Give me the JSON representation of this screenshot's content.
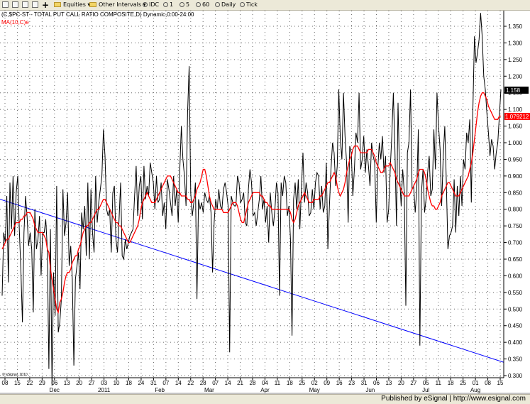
{
  "toolbar": {
    "equities": "Equities",
    "other_intervals": "Other Intervals",
    "idc": "IDC",
    "i1": "1",
    "i5": "5",
    "i60": "60",
    "daily": "Daily",
    "tick": "Tick"
  },
  "footer": {
    "text": "Published by eSignal | http://www.esignal.com"
  },
  "colors": {
    "price": "#000000",
    "ma": "#ff0000",
    "trend": "#0000ff",
    "grid": "#555555"
  },
  "chart_data": {
    "type": "line",
    "title": "(C,$PC-ST - TOTAL PUT CALL RATIO COMPOSITE,D) Dynamic,0:00-24:00",
    "indicator_label": "MA(10,C)e",
    "watermark": "© eSignal, 2010",
    "ylim": [
      0.25,
      1.4
    ],
    "y_ticks": [
      0.3,
      0.35,
      0.4,
      0.45,
      0.5,
      0.55,
      0.6,
      0.65,
      0.7,
      0.75,
      0.8,
      0.85,
      0.9,
      0.95,
      1.0,
      1.05,
      1.1,
      1.15,
      1.2,
      1.25,
      1.3,
      1.35
    ],
    "y_tick_labels": [
      "0.300",
      "0.350",
      "0.400",
      "0.450",
      "0.500",
      "0.550",
      "0.600",
      "0.650",
      "0.700",
      "0.750",
      "0.800",
      "0.850",
      "0.900",
      "0.950",
      "1.000",
      "1.050",
      "1.100",
      "1.150",
      "1.200",
      "1.250",
      "1.300",
      "1.350"
    ],
    "x_ticks": [
      "08",
      "15",
      "22",
      "29",
      "06",
      "13",
      "20",
      "27",
      "03",
      "10",
      "18",
      "24",
      "31",
      "07",
      "14",
      "22",
      "28",
      "07",
      "14",
      "21",
      "28",
      "04",
      "11",
      "18",
      "25",
      "02",
      "09",
      "16",
      "23",
      "31",
      "06",
      "13",
      "20",
      "27",
      "05",
      "11",
      "18",
      "25",
      "01",
      "08",
      "15"
    ],
    "month_labels": [
      {
        "label": "Dec",
        "tick": 4
      },
      {
        "label": "2011",
        "tick": 8
      },
      {
        "label": "Feb",
        "tick": 12.5
      },
      {
        "label": "Mar",
        "tick": 16.5
      },
      {
        "label": "Apr",
        "tick": 21
      },
      {
        "label": "May",
        "tick": 25
      },
      {
        "label": "Jun",
        "tick": 29.5
      },
      {
        "label": "Jul",
        "tick": 34
      },
      {
        "label": "Aug",
        "tick": 38
      }
    ],
    "last_value_label": "1.158",
    "ma_value_label": "1.079212",
    "last_value": 1.158,
    "ma_value": 1.079,
    "series": [
      {
        "name": "$PC-ST",
        "color": "#000000",
        "values": [
          0.54,
          0.73,
          0.7,
          0.84,
          0.58,
          0.88,
          0.74,
          0.9,
          0.72,
          0.85,
          0.9,
          0.74,
          0.62,
          0.46,
          0.73,
          0.84,
          0.78,
          0.69,
          0.73,
          0.68,
          0.49,
          0.8,
          0.68,
          0.71,
          0.78,
          0.6,
          0.73,
          0.73,
          0.77,
          0.68,
          0.32,
          0.74,
          0.27,
          0.61,
          0.48,
          0.87,
          0.43,
          0.46,
          0.53,
          0.86,
          0.72,
          0.76,
          0.85,
          0.63,
          0.69,
          0.59,
          0.33,
          0.59,
          0.63,
          0.67,
          0.56,
          0.79,
          0.74,
          0.81,
          0.66,
          0.88,
          0.65,
          0.86,
          0.73,
          0.67,
          0.9,
          0.76,
          0.82,
          0.86,
          0.9,
          1.04,
          0.96,
          0.8,
          0.78,
          0.8,
          0.67,
          0.85,
          0.87,
          0.71,
          0.67,
          0.77,
          0.88,
          0.66,
          0.65,
          0.71,
          0.68,
          0.7,
          0.72,
          0.73,
          0.74,
          0.84,
          0.93,
          0.78,
          0.87,
          0.9,
          0.77,
          0.93,
          0.83,
          0.87,
          0.84,
          0.94,
          0.91,
          0.88,
          0.8,
          0.9,
          0.82,
          0.83,
          0.88,
          0.78,
          0.82,
          0.74,
          0.89,
          0.86,
          0.82,
          0.78,
          0.9,
          0.81,
          0.86,
          0.76,
          0.92,
          1.05,
          0.95,
          0.9,
          0.81,
          1.09,
          1.23,
          0.85,
          0.78,
          0.82,
          0.88,
          0.53,
          0.83,
          0.8,
          0.82,
          0.79,
          0.85,
          0.83,
          0.82,
          0.84,
          0.79,
          0.61,
          0.76,
          0.83,
          0.8,
          0.86,
          0.81,
          0.8,
          0.86,
          0.88,
          0.85,
          0.81,
          0.37,
          0.84,
          0.82,
          0.81,
          0.81,
          0.9,
          0.88,
          0.82,
          0.83,
          0.85,
          0.76,
          0.75,
          0.86,
          0.92,
          0.88,
          0.78,
          0.79,
          0.75,
          0.79,
          0.83,
          0.9,
          0.8,
          0.83,
          0.76,
          0.81,
          0.7,
          0.85,
          0.79,
          0.75,
          0.8,
          0.88,
          0.85,
          0.54,
          0.88,
          0.84,
          0.9,
          0.88,
          0.78,
          0.81,
          0.71,
          0.42,
          0.83,
          0.88,
          0.8,
          0.89,
          0.74,
          0.86,
          0.97,
          0.82,
          0.88,
          0.85,
          0.78,
          0.79,
          0.86,
          0.8,
          0.88,
          0.91,
          0.9,
          0.8,
          0.87,
          0.79,
          0.81,
          0.94,
          0.68,
          0.81,
          0.92,
          1.0,
          0.97,
          0.87,
          0.93,
          1.16,
          1.01,
          0.95,
          1.15,
          1.02,
          0.94,
          0.76,
          0.99,
          0.97,
          0.84,
          0.92,
          1.03,
          1.0,
          1.15,
          0.92,
          0.95,
          1.02,
          0.91,
          0.98,
          0.93,
          0.87,
          1.0,
          0.96,
          0.94,
          0.76,
          0.92,
          1.0,
          0.95,
          1.02,
          0.91,
          0.96,
          0.76,
          0.8,
          0.92,
          1.02,
          1.15,
          0.98,
          0.75,
          1.12,
          0.9,
          0.81,
          0.92,
          0.85,
          0.51,
          0.97,
          1.0,
          1.16,
          0.86,
          0.87,
          0.79,
          0.86,
          1.04,
          0.39,
          0.85,
          0.92,
          0.79,
          0.83,
          0.91,
          0.96,
          0.84,
          0.86,
          1.04,
          0.92,
          1.15,
          1.05,
          0.98,
          0.81,
          0.96,
          1.05,
          0.88,
          0.68,
          0.72,
          0.73,
          0.75,
          0.89,
          0.73,
          0.87,
          0.78,
          0.9,
          0.81,
          0.95,
          0.92,
          1.03,
          1.0,
          1.07,
          0.82,
          1.1,
          1.32,
          1.24,
          1.27,
          1.31,
          1.39,
          1.32,
          1.2,
          1.16,
          1.09,
          1.03,
          0.96,
          1.01,
          0.99,
          0.92,
          0.97,
          1.0,
          1.08,
          1.16
        ]
      },
      {
        "name": "MA(10,C)e",
        "color": "#ff0000",
        "values": [
          0.68,
          0.69,
          0.7,
          0.71,
          0.71,
          0.72,
          0.73,
          0.74,
          0.75,
          0.76,
          0.76,
          0.76,
          0.77,
          0.77,
          0.78,
          0.78,
          0.79,
          0.79,
          0.79,
          0.78,
          0.77,
          0.75,
          0.74,
          0.73,
          0.73,
          0.73,
          0.73,
          0.72,
          0.71,
          0.68,
          0.67,
          0.62,
          0.59,
          0.56,
          0.53,
          0.5,
          0.49,
          0.52,
          0.53,
          0.55,
          0.58,
          0.6,
          0.61,
          0.61,
          0.62,
          0.64,
          0.65,
          0.66,
          0.66,
          0.68,
          0.69,
          0.71,
          0.73,
          0.74,
          0.75,
          0.75,
          0.76,
          0.76,
          0.77,
          0.78,
          0.79,
          0.8,
          0.8,
          0.81,
          0.82,
          0.83,
          0.83,
          0.82,
          0.81,
          0.8,
          0.79,
          0.78,
          0.77,
          0.76,
          0.76,
          0.75,
          0.75,
          0.74,
          0.73,
          0.72,
          0.71,
          0.7,
          0.7,
          0.71,
          0.72,
          0.73,
          0.74,
          0.75,
          0.77,
          0.8,
          0.82,
          0.83,
          0.84,
          0.85,
          0.84,
          0.83,
          0.82,
          0.82,
          0.82,
          0.83,
          0.84,
          0.85,
          0.86,
          0.87,
          0.88,
          0.89,
          0.9,
          0.9,
          0.9,
          0.89,
          0.88,
          0.87,
          0.86,
          0.85,
          0.85,
          0.84,
          0.84,
          0.84,
          0.84,
          0.83,
          0.83,
          0.82,
          0.82,
          0.83,
          0.84,
          0.86,
          0.87,
          0.88,
          0.9,
          0.92,
          0.92,
          0.9,
          0.87,
          0.84,
          0.82,
          0.81,
          0.8,
          0.8,
          0.8,
          0.8,
          0.8,
          0.8,
          0.79,
          0.79,
          0.79,
          0.79,
          0.8,
          0.81,
          0.82,
          0.82,
          0.82,
          0.81,
          0.79,
          0.77,
          0.76,
          0.76,
          0.78,
          0.8,
          0.82,
          0.83,
          0.84,
          0.85,
          0.85,
          0.85,
          0.85,
          0.85,
          0.84,
          0.84,
          0.83,
          0.82,
          0.82,
          0.81,
          0.81,
          0.8,
          0.8,
          0.8,
          0.8,
          0.8,
          0.8,
          0.8,
          0.8,
          0.8,
          0.8,
          0.8,
          0.8,
          0.79,
          0.77,
          0.76,
          0.77,
          0.79,
          0.81,
          0.82,
          0.83,
          0.84,
          0.85,
          0.84,
          0.83,
          0.82,
          0.82,
          0.82,
          0.83,
          0.83,
          0.83,
          0.83,
          0.84,
          0.84,
          0.85,
          0.86,
          0.87,
          0.88,
          0.88,
          0.89,
          0.9,
          0.91,
          0.9,
          0.87,
          0.85,
          0.84,
          0.85,
          0.86,
          0.88,
          0.91,
          0.93,
          0.95,
          0.96,
          0.98,
          0.99,
          0.99,
          0.99,
          0.98,
          0.97,
          0.97,
          0.97,
          0.97,
          0.97,
          0.98,
          0.98,
          0.98,
          0.97,
          0.96,
          0.94,
          0.93,
          0.92,
          0.91,
          0.91,
          0.92,
          0.93,
          0.93,
          0.93,
          0.94,
          0.93,
          0.92,
          0.91,
          0.89,
          0.88,
          0.87,
          0.86,
          0.85,
          0.84,
          0.84,
          0.84,
          0.84,
          0.85,
          0.86,
          0.87,
          0.88,
          0.89,
          0.91,
          0.92,
          0.92,
          0.92,
          0.91,
          0.89,
          0.86,
          0.84,
          0.82,
          0.81,
          0.81,
          0.8,
          0.8,
          0.81,
          0.82,
          0.84,
          0.85,
          0.86,
          0.87,
          0.88,
          0.88,
          0.87,
          0.86,
          0.85,
          0.84,
          0.84,
          0.84,
          0.85,
          0.86,
          0.87,
          0.88,
          0.89,
          0.9,
          0.92,
          0.94,
          0.97,
          1.01,
          1.05,
          1.09,
          1.12,
          1.14,
          1.15,
          1.15,
          1.14,
          1.13,
          1.11,
          1.1,
          1.09,
          1.08,
          1.07,
          1.07,
          1.07,
          1.08,
          1.08
        ]
      },
      {
        "name": "trendline",
        "color": "#0000ff",
        "values": [
          0.83,
          0.34
        ]
      }
    ],
    "grid": true,
    "dates_start": "2010-11-08",
    "dates_end": "2011-08-15"
  }
}
